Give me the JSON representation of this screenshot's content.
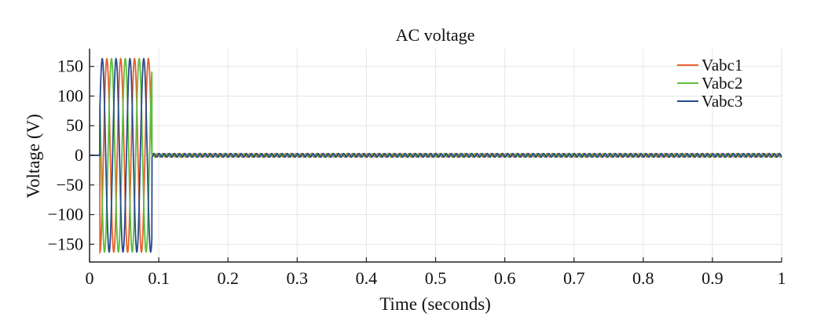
{
  "chart_data": {
    "type": "line",
    "title": "AC voltage",
    "xlabel": "Time (seconds)",
    "ylabel": "Voltage (V)",
    "xlim": [
      0,
      1
    ],
    "ylim": [
      -180,
      180
    ],
    "xticks": [
      0,
      0.1,
      0.2,
      0.3,
      0.4,
      0.5,
      0.6,
      0.7,
      0.8,
      0.9,
      1
    ],
    "xtick_labels": [
      "0",
      "0.1",
      "0.2",
      "0.3",
      "0.4",
      "0.5",
      "0.6",
      "0.7",
      "0.8",
      "0.9",
      "1"
    ],
    "yticks": [
      150,
      100,
      50,
      0,
      -50,
      -100,
      -150
    ],
    "ytick_labels": [
      "150",
      "100",
      "50",
      "0",
      "−50",
      "−100",
      "−150"
    ],
    "grid": true,
    "legend_position": "top-right",
    "series": [
      {
        "name": "Vabc1",
        "color": "#e8602c",
        "amplitude": 163,
        "frequency_hz": 50,
        "phase_deg": 0,
        "active_start": 0.015,
        "active_end": 0.09,
        "residual_amplitude": 3
      },
      {
        "name": "Vabc2",
        "color": "#5cbf3c",
        "amplitude": 163,
        "frequency_hz": 50,
        "phase_deg": -120,
        "active_start": 0.015,
        "active_end": 0.09,
        "residual_amplitude": 3
      },
      {
        "name": "Vabc3",
        "color": "#2a4a8c",
        "amplitude": 163,
        "frequency_hz": 50,
        "phase_deg": 120,
        "active_start": 0.015,
        "active_end": 0.09,
        "residual_amplitude": 3
      }
    ]
  }
}
